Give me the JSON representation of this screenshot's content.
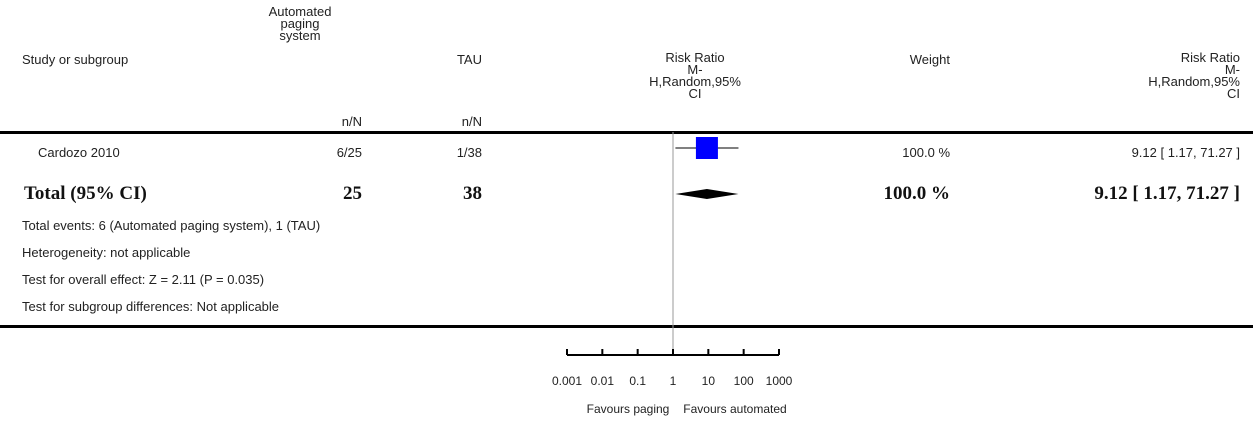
{
  "header": {
    "study_col": "Study or subgroup",
    "exp_col_line1": "Automated",
    "exp_col_line2": "paging",
    "exp_col_line3": "system",
    "exp_nN": "n/N",
    "ctrl_col": "TAU",
    "ctrl_nN": "n/N",
    "rr_plot_line1": "Risk Ratio",
    "rr_plot_line2": "M-",
    "rr_plot_line3": "H,Random,95%",
    "rr_plot_line4": "CI",
    "weight_col": "Weight",
    "rr_col_line1": "Risk Ratio",
    "rr_col_line2": "M-",
    "rr_col_line3": "H,Random,95%",
    "rr_col_line4": "CI"
  },
  "study": {
    "name": "Cardozo 2010",
    "exp": "6/25",
    "ctrl": "1/38",
    "weight": "100.0 %",
    "rr": "9.12 [ 1.17, 71.27 ]"
  },
  "total": {
    "label": "Total (95% CI)",
    "exp": "25",
    "ctrl": "38",
    "weight": "100.0 %",
    "rr": "9.12 [ 1.17, 71.27 ]"
  },
  "notes": {
    "events": "Total events: 6 (Automated paging system), 1 (TAU)",
    "heterogeneity": "Heterogeneity: not applicable",
    "overall": "Test for overall effect: Z = 2.11 (P = 0.035)",
    "subgroup": "Test for subgroup differences: Not applicable"
  },
  "colors": {
    "square": "#0000ff",
    "line": "#000000",
    "diamond": "#000000",
    "null_line": "#999999"
  },
  "chart_data": {
    "type": "forest",
    "scale": "log",
    "xlim": [
      0.001,
      1000
    ],
    "ticks": [
      0.001,
      0.01,
      0.1,
      1,
      10,
      100,
      1000
    ],
    "tick_labels": [
      "0.001",
      "0.01",
      "0.1",
      "1",
      "10",
      "100",
      "1000"
    ],
    "favours_left": "Favours paging",
    "favours_right": "Favours automated",
    "studies": [
      {
        "name": "Cardozo 2010",
        "rr": 9.12,
        "ci_low": 1.17,
        "ci_high": 71.27,
        "weight": 100.0
      }
    ],
    "total": {
      "rr": 9.12,
      "ci_low": 1.17,
      "ci_high": 71.27
    }
  }
}
